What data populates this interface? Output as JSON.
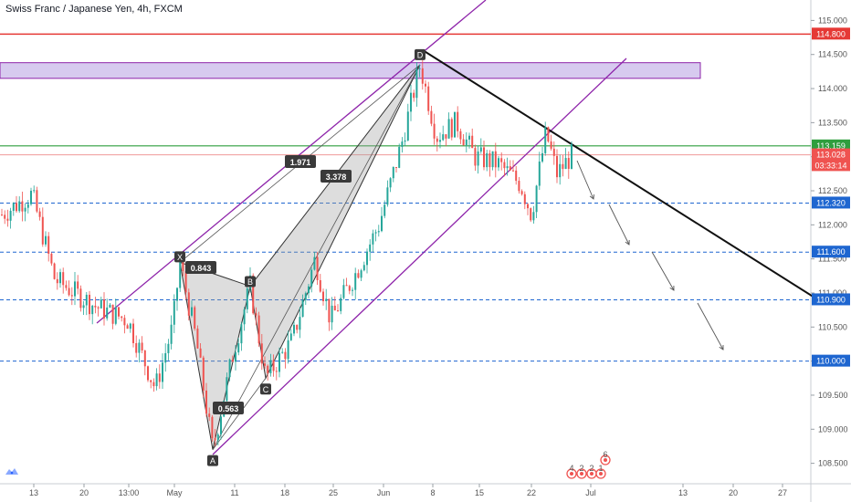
{
  "chart_data": {
    "type": "candlestick",
    "title": "Swiss Franc / Japanese Yen, 4h, FXCM",
    "x_tick_labels": [
      "13",
      "20",
      "13:00",
      "May",
      "11",
      "18",
      "25",
      "Jun",
      "8",
      "15",
      "22",
      "Jul",
      "13",
      "20",
      "27"
    ],
    "y_tick_labels": [
      "115.000",
      "114.500",
      "114.000",
      "113.500",
      "113.000",
      "112.500",
      "112.000",
      "111.500",
      "111.000",
      "110.500",
      "110.000",
      "109.500",
      "109.000",
      "108.500"
    ],
    "ylim": [
      108.2,
      115.3
    ],
    "grid": false,
    "price_tags": [
      {
        "label": "114.800",
        "value": 114.8,
        "color": "#e53935"
      },
      {
        "label": "113.159",
        "value": 113.159,
        "color": "#2e9e3e"
      },
      {
        "label": "113.028",
        "value": 113.028,
        "color": "#ef5350"
      },
      {
        "label": "03:33:14",
        "value": 112.87,
        "color": "#ef5350"
      },
      {
        "label": "112.320",
        "value": 112.32,
        "color": "#1e66d0"
      },
      {
        "label": "111.600",
        "value": 111.6,
        "color": "#1e66d0"
      },
      {
        "label": "110.900",
        "value": 110.9,
        "color": "#1e66d0"
      },
      {
        "label": "110.000",
        "value": 110.0,
        "color": "#1e66d0"
      }
    ],
    "pattern": {
      "points": [
        {
          "label": "X",
          "value": 111.45
        },
        {
          "label": "A",
          "value": 108.7
        },
        {
          "label": "B",
          "value": 111.1
        },
        {
          "label": "C",
          "value": 109.75
        },
        {
          "label": "D",
          "value": 114.35
        }
      ],
      "ratios": [
        {
          "label": "0.843"
        },
        {
          "label": "0.563"
        },
        {
          "label": "1.971"
        },
        {
          "label": "3.378"
        }
      ]
    },
    "resistance_zone": {
      "low": 114.15,
      "high": 114.38
    },
    "candles_seed": 7
  },
  "footer": {
    "icons": [
      "event-dot-1",
      "event-dot-2",
      "event-dot-3",
      "event-dot-4",
      "event-dot-5"
    ],
    "event_labels": [
      "4",
      "2",
      "2",
      "1",
      "6"
    ]
  }
}
